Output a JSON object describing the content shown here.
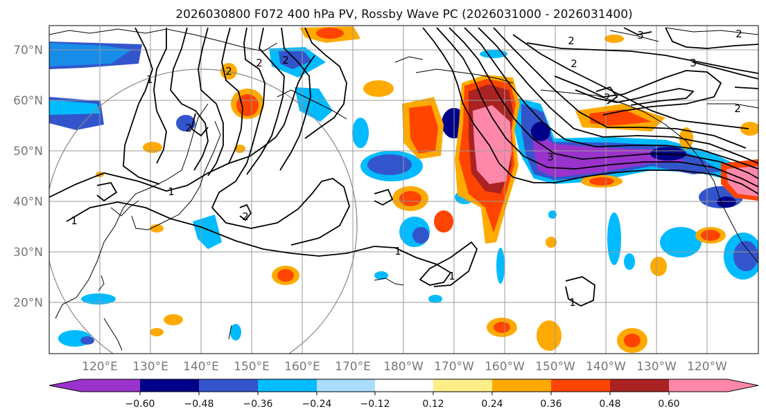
{
  "title": "2026030800 F072 400 hPa PV, Rossby Wave PC (2026031000 - 2026031400)",
  "x_ticks": [
    "120°E",
    "130°E",
    "140°E",
    "150°E",
    "160°E",
    "170°E",
    "180°W",
    "170°W",
    "160°W",
    "150°W",
    "140°W",
    "130°W",
    "120°W"
  ],
  "y_ticks": [
    "70°N",
    "60°N",
    "50°N",
    "40°N",
    "30°N",
    "20°N"
  ],
  "colorbar": {
    "ticks": [
      "−0.60",
      "−0.48",
      "−0.36",
      "−0.24",
      "−0.12",
      "0.12",
      "0.24",
      "0.36",
      "0.48",
      "0.60"
    ],
    "colors": [
      "#9933cc",
      "#000088",
      "#3355cc",
      "#00bbff",
      "#aaddff",
      "#ffffff",
      "#ffee88",
      "#ffaa00",
      "#ff4400",
      "#aa2222",
      "#ff88aa"
    ]
  },
  "contour_labels": [
    "1",
    "2",
    "2",
    "2",
    "2",
    "1",
    "2",
    "1",
    "1",
    "1",
    "1",
    "2",
    "3",
    "2",
    "2",
    "3",
    "2",
    "3",
    "2"
  ]
}
